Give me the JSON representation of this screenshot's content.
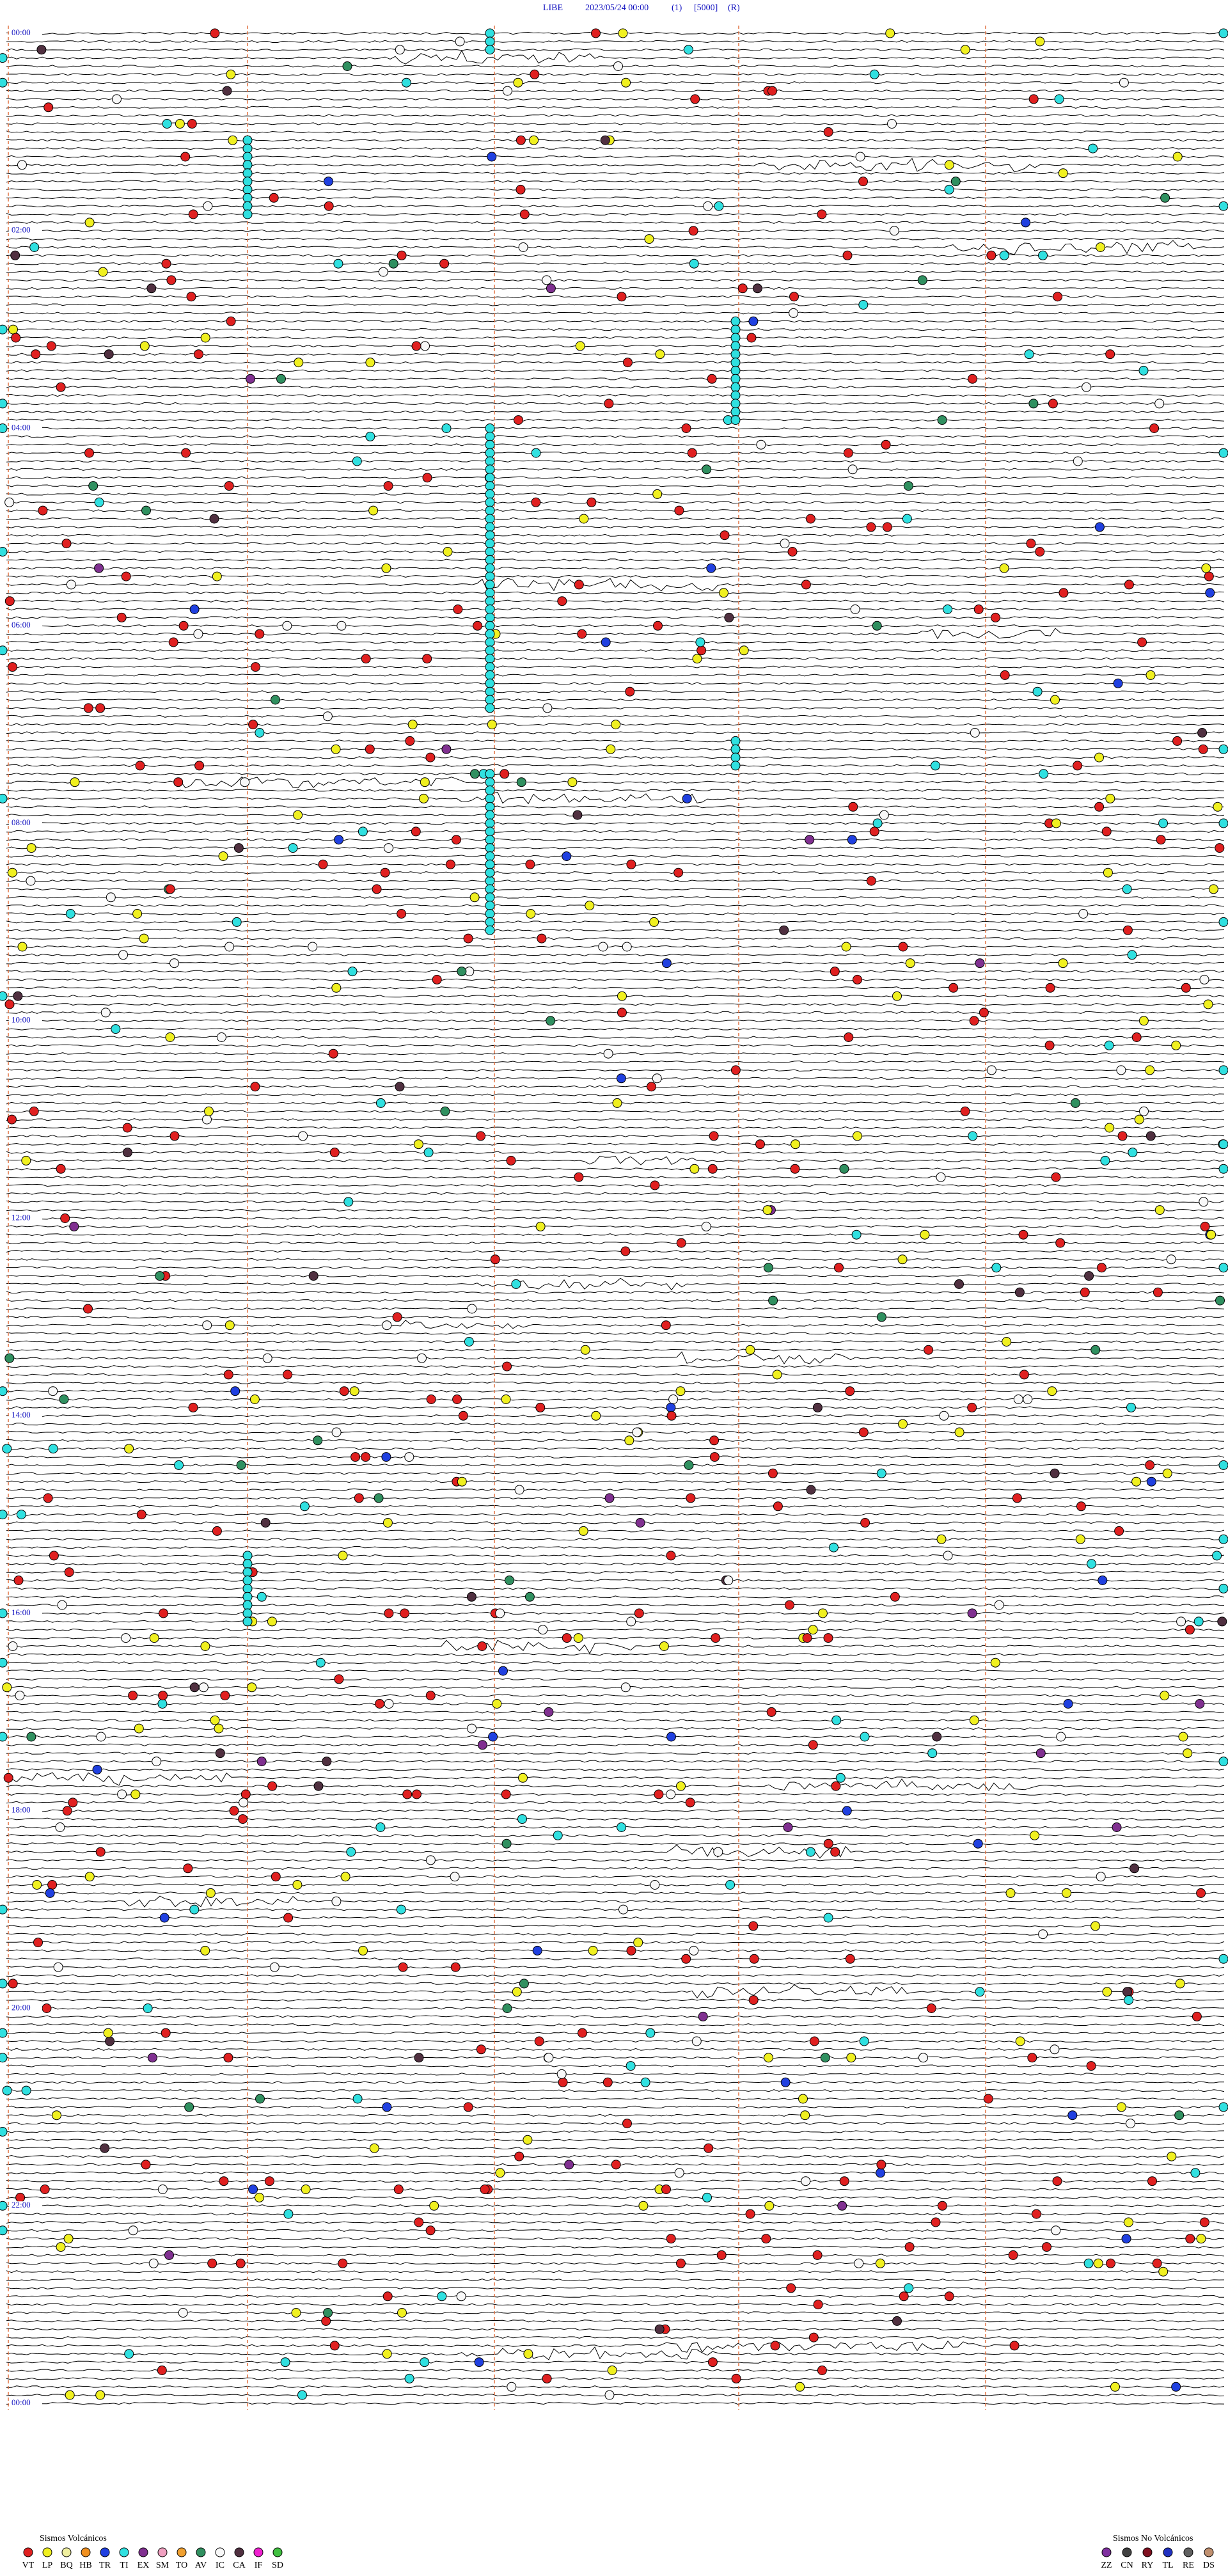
{
  "header": {
    "station": "LIBE",
    "datetime": "2023/05/24 00:00",
    "channel": "(1)",
    "scale": "[5000]",
    "mode": "(R)"
  },
  "hour_labels": [
    "00:00",
    "02:00",
    "04:00",
    "06:00",
    "08:00",
    "10:00",
    "12:00",
    "14:00",
    "16:00",
    "18:00",
    "20:00",
    "22:00",
    "00:00"
  ],
  "legend": {
    "volcanic": {
      "title": "Sismos Volcánicos",
      "items": [
        {
          "label": "VT",
          "color": "#e02020"
        },
        {
          "label": "LP",
          "color": "#f0f020"
        },
        {
          "label": "BQ",
          "color": "#f0f0a0"
        },
        {
          "label": "HB",
          "color": "#f09020"
        },
        {
          "label": "TR",
          "color": "#2040e0"
        },
        {
          "label": "TI",
          "color": "#30e0e0"
        },
        {
          "label": "EX",
          "color": "#803090"
        },
        {
          "label": "SM",
          "color": "#f0a0c0"
        },
        {
          "label": "TO",
          "color": "#f0a030"
        },
        {
          "label": "AV",
          "color": "#309060"
        },
        {
          "label": "IC",
          "color": "#f8f8f8"
        },
        {
          "label": "CA",
          "color": "#503040"
        },
        {
          "label": "IF",
          "color": "#f020d0"
        },
        {
          "label": "SD",
          "color": "#40c040"
        }
      ]
    },
    "non_volcanic": {
      "title": "Sismos No Volcánicos",
      "items": [
        {
          "label": "ZZ",
          "color": "#8030a0"
        },
        {
          "label": "CN",
          "color": "#404040"
        },
        {
          "label": "RY",
          "color": "#801020"
        },
        {
          "label": "TL",
          "color": "#2030c0"
        },
        {
          "label": "RE",
          "color": "#606060"
        },
        {
          "label": "DS",
          "color": "#c09070"
        }
      ]
    }
  }
}
